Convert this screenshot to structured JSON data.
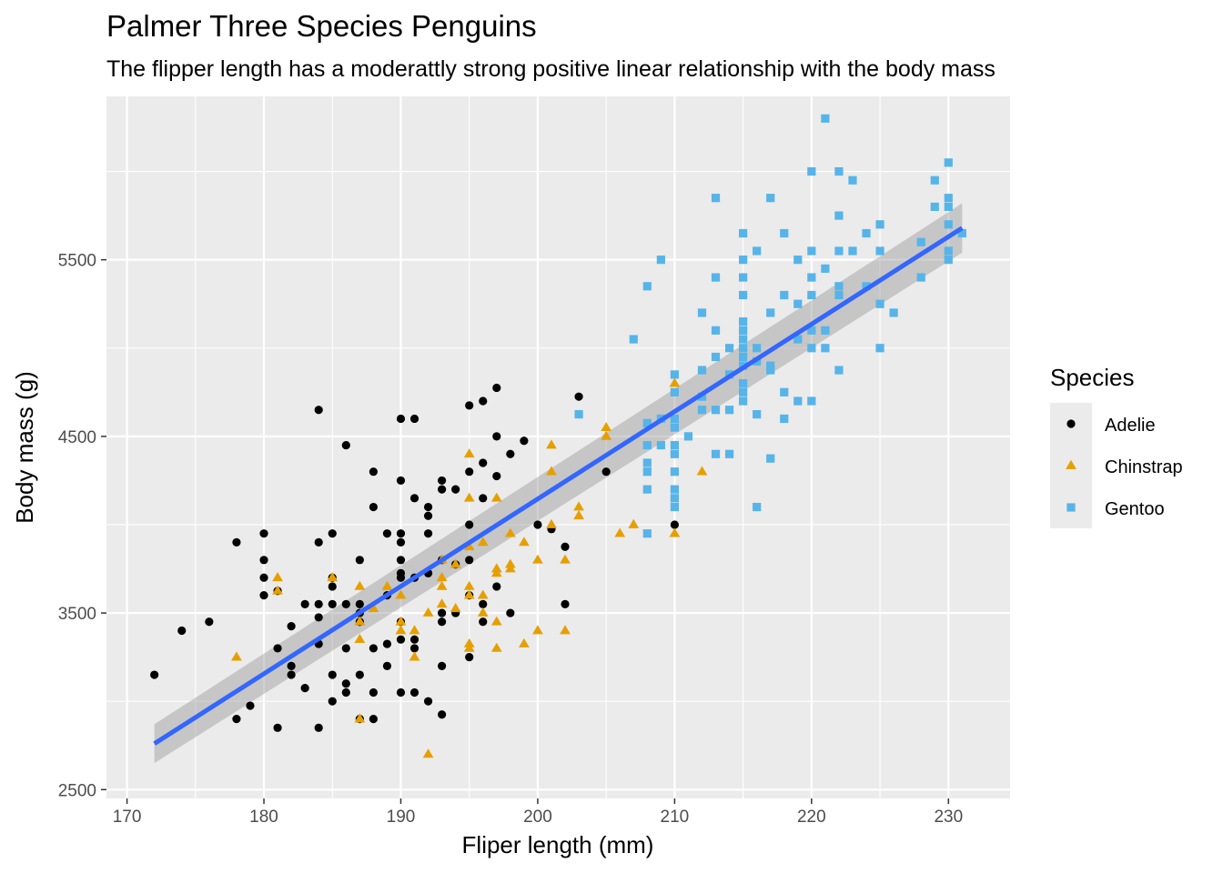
{
  "chart_data": {
    "type": "scatter",
    "title": "Palmer Three Species Penguins",
    "subtitle": "The flipper length has a moderattly strong positive linear relationship with the body mass",
    "xlabel": "Fliper length (mm)",
    "ylabel": "Body mass (g)",
    "xlim": [
      168.5,
      234.5
    ],
    "ylim": [
      2450,
      6425
    ],
    "x_ticks": [
      "170",
      "180",
      "190",
      "200",
      "210",
      "220",
      "230"
    ],
    "y_ticks": [
      "2500",
      "3500",
      "4500",
      "5500"
    ],
    "grid": true,
    "panel_color": "#ebebeb",
    "legend": {
      "title": "Species",
      "position": "right"
    },
    "series": [
      {
        "name": "Adelie",
        "color": "#000000",
        "shape": "circle",
        "points": [
          [
            172,
            3150
          ],
          [
            174,
            3400
          ],
          [
            176,
            3450
          ],
          [
            178,
            3900
          ],
          [
            178,
            2900
          ],
          [
            179,
            2975
          ],
          [
            180,
            3950
          ],
          [
            180,
            3800
          ],
          [
            180,
            3700
          ],
          [
            180,
            3600
          ],
          [
            181,
            3300
          ],
          [
            181,
            3625
          ],
          [
            181,
            2850
          ],
          [
            182,
            3425
          ],
          [
            182,
            3200
          ],
          [
            182,
            3150
          ],
          [
            183,
            3550
          ],
          [
            183,
            3075
          ],
          [
            184,
            4650
          ],
          [
            184,
            3900
          ],
          [
            184,
            3550
          ],
          [
            184,
            3475
          ],
          [
            184,
            3325
          ],
          [
            184,
            2850
          ],
          [
            185,
            3950
          ],
          [
            185,
            3700
          ],
          [
            185,
            3650
          ],
          [
            185,
            3550
          ],
          [
            185,
            3150
          ],
          [
            185,
            3000
          ],
          [
            186,
            4450
          ],
          [
            186,
            3550
          ],
          [
            186,
            3300
          ],
          [
            186,
            3100
          ],
          [
            186,
            3050
          ],
          [
            187,
            3800
          ],
          [
            187,
            3550
          ],
          [
            187,
            3500
          ],
          [
            187,
            3450
          ],
          [
            187,
            3150
          ],
          [
            187,
            2900
          ],
          [
            188,
            4300
          ],
          [
            188,
            4100
          ],
          [
            188,
            3300
          ],
          [
            188,
            3050
          ],
          [
            188,
            2900
          ],
          [
            189,
            3950
          ],
          [
            189,
            3600
          ],
          [
            189,
            3325
          ],
          [
            189,
            3200
          ],
          [
            190,
            4600
          ],
          [
            190,
            4250
          ],
          [
            190,
            3950
          ],
          [
            190,
            3900
          ],
          [
            190,
            3800
          ],
          [
            190,
            3725
          ],
          [
            190,
            3700
          ],
          [
            190,
            3450
          ],
          [
            190,
            3350
          ],
          [
            190,
            3050
          ],
          [
            191,
            4600
          ],
          [
            191,
            4150
          ],
          [
            191,
            3700
          ],
          [
            191,
            3350
          ],
          [
            191,
            3300
          ],
          [
            191,
            3050
          ],
          [
            192,
            4100
          ],
          [
            192,
            4050
          ],
          [
            192,
            3950
          ],
          [
            192,
            3725
          ],
          [
            192,
            3000
          ],
          [
            193,
            4250
          ],
          [
            193,
            4200
          ],
          [
            193,
            3800
          ],
          [
            193,
            3500
          ],
          [
            193,
            3450
          ],
          [
            193,
            3200
          ],
          [
            193,
            2925
          ],
          [
            194,
            4200
          ],
          [
            194,
            3775
          ],
          [
            194,
            3500
          ],
          [
            195,
            4675
          ],
          [
            195,
            4300
          ],
          [
            195,
            4000
          ],
          [
            195,
            3800
          ],
          [
            195,
            3600
          ],
          [
            195,
            3250
          ],
          [
            196,
            4700
          ],
          [
            196,
            4350
          ],
          [
            196,
            4150
          ],
          [
            196,
            3550
          ],
          [
            196,
            3450
          ],
          [
            197,
            4775
          ],
          [
            197,
            4500
          ],
          [
            197,
            4275
          ],
          [
            197,
            3650
          ],
          [
            198,
            4400
          ],
          [
            198,
            3500
          ],
          [
            199,
            4475
          ],
          [
            200,
            4000
          ],
          [
            201,
            3975
          ],
          [
            202,
            3875
          ],
          [
            202,
            3550
          ],
          [
            203,
            4725
          ],
          [
            205,
            4300
          ],
          [
            210,
            4000
          ]
        ]
      },
      {
        "name": "Chinstrap",
        "color": "#e69f00",
        "shape": "triangle",
        "points": [
          [
            178,
            3250
          ],
          [
            181,
            3700
          ],
          [
            181,
            3625
          ],
          [
            185,
            3700
          ],
          [
            187,
            3650
          ],
          [
            187,
            3450
          ],
          [
            187,
            3350
          ],
          [
            187,
            2900
          ],
          [
            188,
            3525
          ],
          [
            189,
            3650
          ],
          [
            190,
            3600
          ],
          [
            190,
            3450
          ],
          [
            190,
            3400
          ],
          [
            191,
            3400
          ],
          [
            191,
            3250
          ],
          [
            192,
            2700
          ],
          [
            192,
            3500
          ],
          [
            193,
            3800
          ],
          [
            193,
            3700
          ],
          [
            193,
            3650
          ],
          [
            193,
            3550
          ],
          [
            194,
            3775
          ],
          [
            194,
            3525
          ],
          [
            195,
            4400
          ],
          [
            195,
            4150
          ],
          [
            195,
            3875
          ],
          [
            195,
            3650
          ],
          [
            195,
            3600
          ],
          [
            195,
            3325
          ],
          [
            195,
            3300
          ],
          [
            196,
            3900
          ],
          [
            196,
            3600
          ],
          [
            196,
            3500
          ],
          [
            197,
            4150
          ],
          [
            197,
            3750
          ],
          [
            197,
            3725
          ],
          [
            197,
            3450
          ],
          [
            197,
            3300
          ],
          [
            198,
            3950
          ],
          [
            198,
            3775
          ],
          [
            198,
            3750
          ],
          [
            199,
            3900
          ],
          [
            199,
            3325
          ],
          [
            200,
            3800
          ],
          [
            200,
            3400
          ],
          [
            201,
            4450
          ],
          [
            201,
            4300
          ],
          [
            201,
            4000
          ],
          [
            202,
            3800
          ],
          [
            202,
            3400
          ],
          [
            203,
            4100
          ],
          [
            203,
            4050
          ],
          [
            205,
            4550
          ],
          [
            205,
            4500
          ],
          [
            206,
            3950
          ],
          [
            207,
            4000
          ],
          [
            210,
            4800
          ],
          [
            210,
            3950
          ],
          [
            212,
            4300
          ]
        ]
      },
      {
        "name": "Gentoo",
        "color": "#56b4e9",
        "shape": "square",
        "points": [
          [
            203,
            4625
          ],
          [
            207,
            5050
          ],
          [
            208,
            5350
          ],
          [
            208,
            4575
          ],
          [
            208,
            4450
          ],
          [
            208,
            4350
          ],
          [
            208,
            4300
          ],
          [
            208,
            4200
          ],
          [
            208,
            3950
          ],
          [
            209,
            5500
          ],
          [
            209,
            4600
          ],
          [
            209,
            4450
          ],
          [
            210,
            4850
          ],
          [
            210,
            4750
          ],
          [
            210,
            4600
          ],
          [
            210,
            4550
          ],
          [
            210,
            4450
          ],
          [
            210,
            4400
          ],
          [
            210,
            4300
          ],
          [
            210,
            4200
          ],
          [
            210,
            4150
          ],
          [
            210,
            4100
          ],
          [
            211,
            4500
          ],
          [
            212,
            5200
          ],
          [
            212,
            4875
          ],
          [
            212,
            4725
          ],
          [
            212,
            4650
          ],
          [
            213,
            5850
          ],
          [
            213,
            5400
          ],
          [
            213,
            5100
          ],
          [
            213,
            4950
          ],
          [
            213,
            4650
          ],
          [
            213,
            4400
          ],
          [
            214,
            5000
          ],
          [
            214,
            4850
          ],
          [
            214,
            4650
          ],
          [
            214,
            4400
          ],
          [
            215,
            5650
          ],
          [
            215,
            5500
          ],
          [
            215,
            5400
          ],
          [
            215,
            5300
          ],
          [
            215,
            5150
          ],
          [
            215,
            5100
          ],
          [
            215,
            5050
          ],
          [
            215,
            5000
          ],
          [
            215,
            4950
          ],
          [
            215,
            4900
          ],
          [
            215,
            4800
          ],
          [
            215,
            4750
          ],
          [
            215,
            4700
          ],
          [
            216,
            5550
          ],
          [
            216,
            5000
          ],
          [
            216,
            4925
          ],
          [
            216,
            4625
          ],
          [
            216,
            4100
          ],
          [
            217,
            5850
          ],
          [
            217,
            5200
          ],
          [
            217,
            4900
          ],
          [
            217,
            4875
          ],
          [
            217,
            4375
          ],
          [
            218,
            5650
          ],
          [
            218,
            5300
          ],
          [
            218,
            4750
          ],
          [
            218,
            4600
          ],
          [
            219,
            5500
          ],
          [
            219,
            5250
          ],
          [
            219,
            5050
          ],
          [
            219,
            4700
          ],
          [
            220,
            6000
          ],
          [
            220,
            5550
          ],
          [
            220,
            5400
          ],
          [
            220,
            5300
          ],
          [
            220,
            5100
          ],
          [
            220,
            5000
          ],
          [
            220,
            4700
          ],
          [
            221,
            6300
          ],
          [
            221,
            5450
          ],
          [
            221,
            5100
          ],
          [
            221,
            5000
          ],
          [
            222,
            6000
          ],
          [
            222,
            5750
          ],
          [
            222,
            5550
          ],
          [
            222,
            5350
          ],
          [
            222,
            5300
          ],
          [
            222,
            4875
          ],
          [
            223,
            5950
          ],
          [
            223,
            5550
          ],
          [
            224,
            5650
          ],
          [
            224,
            5350
          ],
          [
            225,
            5700
          ],
          [
            225,
            5550
          ],
          [
            225,
            5250
          ],
          [
            225,
            5000
          ],
          [
            226,
            5200
          ],
          [
            228,
            5600
          ],
          [
            228,
            5400
          ],
          [
            229,
            5950
          ],
          [
            229,
            5800
          ],
          [
            230,
            6050
          ],
          [
            230,
            5850
          ],
          [
            230,
            5800
          ],
          [
            230,
            5700
          ],
          [
            230,
            5550
          ],
          [
            230,
            5500
          ],
          [
            231,
            5650
          ]
        ]
      }
    ],
    "trend_line": {
      "method": "linear",
      "color": "#3366ff",
      "x": [
        172,
        231
      ],
      "y": [
        2760,
        5680
      ],
      "se_band": [
        110,
        140
      ]
    }
  }
}
